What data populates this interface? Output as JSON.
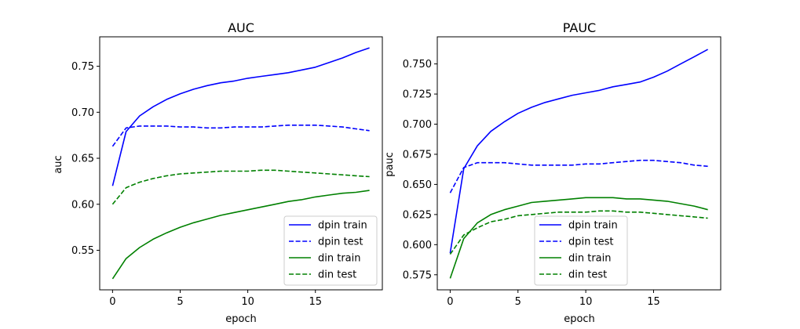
{
  "chart_data": [
    {
      "type": "line",
      "title": "AUC",
      "xlabel": "epoch",
      "ylabel": "auc",
      "xlim": [
        -0.95,
        19.95
      ],
      "ylim": [
        0.507,
        0.782
      ],
      "xticks": [
        0,
        5,
        10,
        15
      ],
      "xtick_labels": [
        "0",
        "5",
        "10",
        "15"
      ],
      "yticks": [
        0.55,
        0.6,
        0.65,
        0.7,
        0.75
      ],
      "ytick_labels": [
        "0.55",
        "0.60",
        "0.65",
        "0.70",
        "0.75"
      ],
      "grid": false,
      "legend_position": "lower-right",
      "x": [
        0,
        1,
        2,
        3,
        4,
        5,
        6,
        7,
        8,
        9,
        10,
        11,
        12,
        13,
        14,
        15,
        16,
        17,
        18,
        19
      ],
      "series": [
        {
          "name": "dpin train",
          "color": "#0000ff",
          "dash": "solid",
          "values": [
            0.62,
            0.679,
            0.696,
            0.706,
            0.714,
            0.72,
            0.725,
            0.729,
            0.732,
            0.734,
            0.737,
            0.739,
            0.741,
            0.743,
            0.746,
            0.749,
            0.754,
            0.759,
            0.765,
            0.77
          ]
        },
        {
          "name": "dpin test",
          "color": "#0000ff",
          "dash": "dashed",
          "values": [
            0.663,
            0.683,
            0.685,
            0.685,
            0.685,
            0.684,
            0.684,
            0.683,
            0.683,
            0.684,
            0.684,
            0.684,
            0.685,
            0.686,
            0.686,
            0.686,
            0.685,
            0.684,
            0.682,
            0.68
          ]
        },
        {
          "name": "din train",
          "color": "#008000",
          "dash": "solid",
          "values": [
            0.519,
            0.541,
            0.553,
            0.562,
            0.569,
            0.575,
            0.58,
            0.584,
            0.588,
            0.591,
            0.594,
            0.597,
            0.6,
            0.603,
            0.605,
            0.608,
            0.61,
            0.612,
            0.613,
            0.615
          ]
        },
        {
          "name": "din test",
          "color": "#008000",
          "dash": "dashed",
          "values": [
            0.6,
            0.618,
            0.624,
            0.628,
            0.631,
            0.633,
            0.634,
            0.635,
            0.636,
            0.636,
            0.636,
            0.637,
            0.637,
            0.636,
            0.635,
            0.634,
            0.633,
            0.632,
            0.631,
            0.63
          ]
        }
      ]
    },
    {
      "type": "line",
      "title": "PAUC",
      "xlabel": "epoch",
      "ylabel": "pauc",
      "xlim": [
        -0.95,
        19.95
      ],
      "ylim": [
        0.5625,
        0.7725
      ],
      "xticks": [
        0,
        5,
        10,
        15
      ],
      "xtick_labels": [
        "0",
        "5",
        "10",
        "15"
      ],
      "yticks": [
        0.575,
        0.6,
        0.625,
        0.65,
        0.675,
        0.7,
        0.725,
        0.75
      ],
      "ytick_labels": [
        "0.575",
        "0.600",
        "0.625",
        "0.650",
        "0.675",
        "0.700",
        "0.725",
        "0.750"
      ],
      "grid": false,
      "legend_position": "lower-center",
      "x": [
        0,
        1,
        2,
        3,
        4,
        5,
        6,
        7,
        8,
        9,
        10,
        11,
        12,
        13,
        14,
        15,
        16,
        17,
        18,
        19
      ],
      "series": [
        {
          "name": "dpin train",
          "color": "#0000ff",
          "dash": "solid",
          "values": [
            0.593,
            0.663,
            0.682,
            0.694,
            0.702,
            0.709,
            0.714,
            0.718,
            0.721,
            0.724,
            0.726,
            0.728,
            0.731,
            0.733,
            0.735,
            0.739,
            0.744,
            0.75,
            0.756,
            0.762
          ]
        },
        {
          "name": "dpin test",
          "color": "#0000ff",
          "dash": "dashed",
          "values": [
            0.643,
            0.664,
            0.668,
            0.668,
            0.668,
            0.667,
            0.666,
            0.666,
            0.666,
            0.666,
            0.667,
            0.667,
            0.668,
            0.669,
            0.67,
            0.67,
            0.669,
            0.668,
            0.666,
            0.665
          ]
        },
        {
          "name": "din train",
          "color": "#008000",
          "dash": "solid",
          "values": [
            0.572,
            0.605,
            0.618,
            0.625,
            0.629,
            0.632,
            0.635,
            0.636,
            0.637,
            0.638,
            0.639,
            0.639,
            0.639,
            0.638,
            0.638,
            0.637,
            0.636,
            0.634,
            0.632,
            0.629
          ]
        },
        {
          "name": "din test",
          "color": "#008000",
          "dash": "dashed",
          "values": [
            0.592,
            0.608,
            0.614,
            0.619,
            0.621,
            0.624,
            0.625,
            0.626,
            0.627,
            0.627,
            0.627,
            0.628,
            0.628,
            0.627,
            0.627,
            0.626,
            0.625,
            0.624,
            0.623,
            0.622
          ]
        }
      ]
    }
  ]
}
